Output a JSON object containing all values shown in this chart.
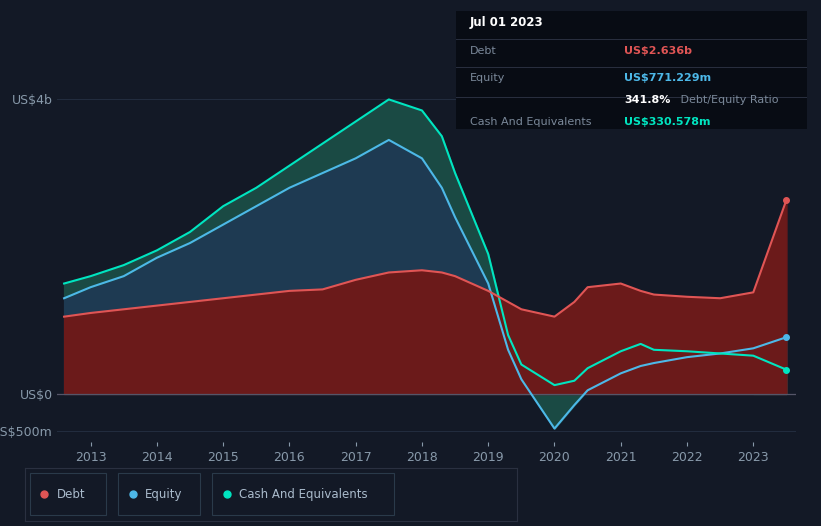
{
  "bg_color": "#131926",
  "plot_bg_color": "#131926",
  "tooltip": {
    "date": "Jul 01 2023",
    "debt_label": "Debt",
    "debt_value": "US$2.636b",
    "debt_color": "#e05555",
    "equity_label": "Equity",
    "equity_value": "US$771.229m",
    "equity_color": "#4db8e8",
    "ratio_bold": "341.8%",
    "ratio_text": " Debt/Equity Ratio",
    "cash_label": "Cash And Equivalents",
    "cash_value": "US$330.578m",
    "cash_color": "#00e5c0"
  },
  "ylabel_top": "US$4b",
  "ylabel_zero": "US$0",
  "ylabel_bottom": "-US$500m",
  "x_labels": [
    "2013",
    "2014",
    "2015",
    "2016",
    "2017",
    "2018",
    "2019",
    "2020",
    "2021",
    "2022",
    "2023"
  ],
  "x_ticks": [
    2013,
    2014,
    2015,
    2016,
    2017,
    2018,
    2019,
    2020,
    2021,
    2022,
    2023
  ],
  "legend": [
    {
      "label": "Debt",
      "color": "#e05555"
    },
    {
      "label": "Equity",
      "color": "#4db8e8"
    },
    {
      "label": "Cash And Equivalents",
      "color": "#00e5c0"
    }
  ],
  "debt_color": "#e05555",
  "debt_fill_color": "#6b1a1a",
  "equity_color": "#4db8e8",
  "equity_fill_color": "#1e3a52",
  "cash_color": "#00e5c0",
  "cash_fill_color": "#1a4a44",
  "grid_color": "#232d3f",
  "years": [
    2012.6,
    2013.0,
    2013.5,
    2014.0,
    2014.5,
    2015.0,
    2015.5,
    2016.0,
    2016.5,
    2017.0,
    2017.5,
    2018.0,
    2018.3,
    2018.5,
    2019.0,
    2019.3,
    2019.5,
    2020.0,
    2020.3,
    2020.5,
    2021.0,
    2021.3,
    2021.5,
    2022.0,
    2022.5,
    2023.0,
    2023.5
  ],
  "debt": [
    1.05,
    1.1,
    1.15,
    1.2,
    1.25,
    1.3,
    1.35,
    1.4,
    1.42,
    1.55,
    1.65,
    1.68,
    1.65,
    1.6,
    1.4,
    1.25,
    1.15,
    1.05,
    1.25,
    1.45,
    1.5,
    1.4,
    1.35,
    1.32,
    1.3,
    1.38,
    2.636
  ],
  "equity": [
    1.3,
    1.45,
    1.6,
    1.85,
    2.05,
    2.3,
    2.55,
    2.8,
    3.0,
    3.2,
    3.45,
    3.2,
    2.8,
    2.4,
    1.5,
    0.6,
    0.2,
    -0.47,
    -0.15,
    0.05,
    0.28,
    0.38,
    0.42,
    0.5,
    0.55,
    0.62,
    0.771
  ],
  "cash": [
    1.5,
    1.6,
    1.75,
    1.95,
    2.2,
    2.55,
    2.8,
    3.1,
    3.4,
    3.7,
    4.0,
    3.85,
    3.5,
    3.0,
    1.9,
    0.8,
    0.4,
    0.12,
    0.18,
    0.35,
    0.58,
    0.68,
    0.6,
    0.58,
    0.55,
    0.52,
    0.33
  ]
}
